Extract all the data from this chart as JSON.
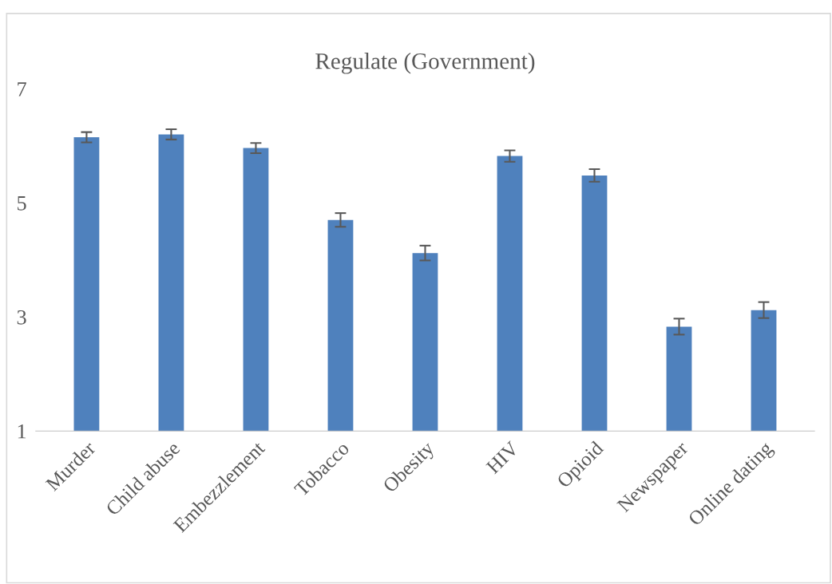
{
  "chart_data": {
    "type": "bar",
    "title": "Regulate (Government)",
    "categories": [
      "Murder",
      "Child abuse",
      "Embezzlement",
      "Tobacco",
      "Obesity",
      "HIV",
      "Opioid",
      "Newspaper",
      "Online dating"
    ],
    "values": [
      6.15,
      6.2,
      5.96,
      4.7,
      4.12,
      5.82,
      5.48,
      2.83,
      3.12
    ],
    "errors": [
      0.09,
      0.09,
      0.09,
      0.12,
      0.13,
      0.1,
      0.11,
      0.14,
      0.14
    ],
    "color": "#4f81bd",
    "ylim": [
      1,
      7
    ],
    "yticks": [
      1,
      3,
      5,
      7
    ],
    "grid": false,
    "legend": false
  }
}
